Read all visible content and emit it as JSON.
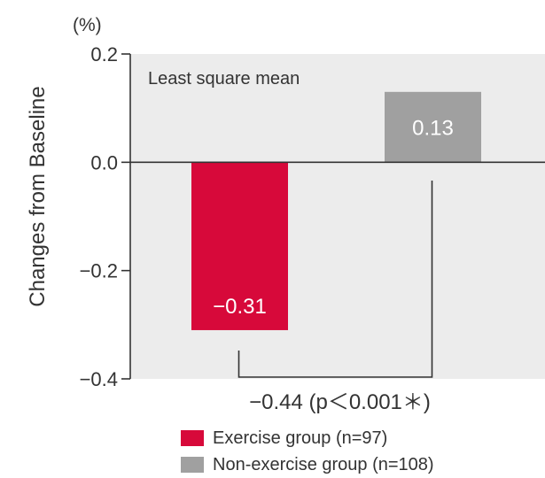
{
  "chart_data": {
    "type": "bar",
    "unit_label": "(%)",
    "ylabel": "Changes from Baseline",
    "annotation": "Least square mean",
    "categories": [
      "Exercise group (n=97)",
      "Non-exercise group (n=108)"
    ],
    "values": [
      -0.31,
      0.13
    ],
    "value_labels": [
      "−0.31",
      "0.13"
    ],
    "colors": [
      "#d7093a",
      "#a0a0a0"
    ],
    "ylim": [
      -0.4,
      0.2
    ],
    "yticks": [
      0.2,
      0.0,
      -0.2,
      -0.4
    ],
    "ytick_labels": [
      "0.2",
      "0.0",
      "−0.2",
      "−0.4"
    ],
    "difference_label": "−0.44 (p＜0.001＊)",
    "legend_position": "bottom",
    "plot_background": "#ececec"
  }
}
